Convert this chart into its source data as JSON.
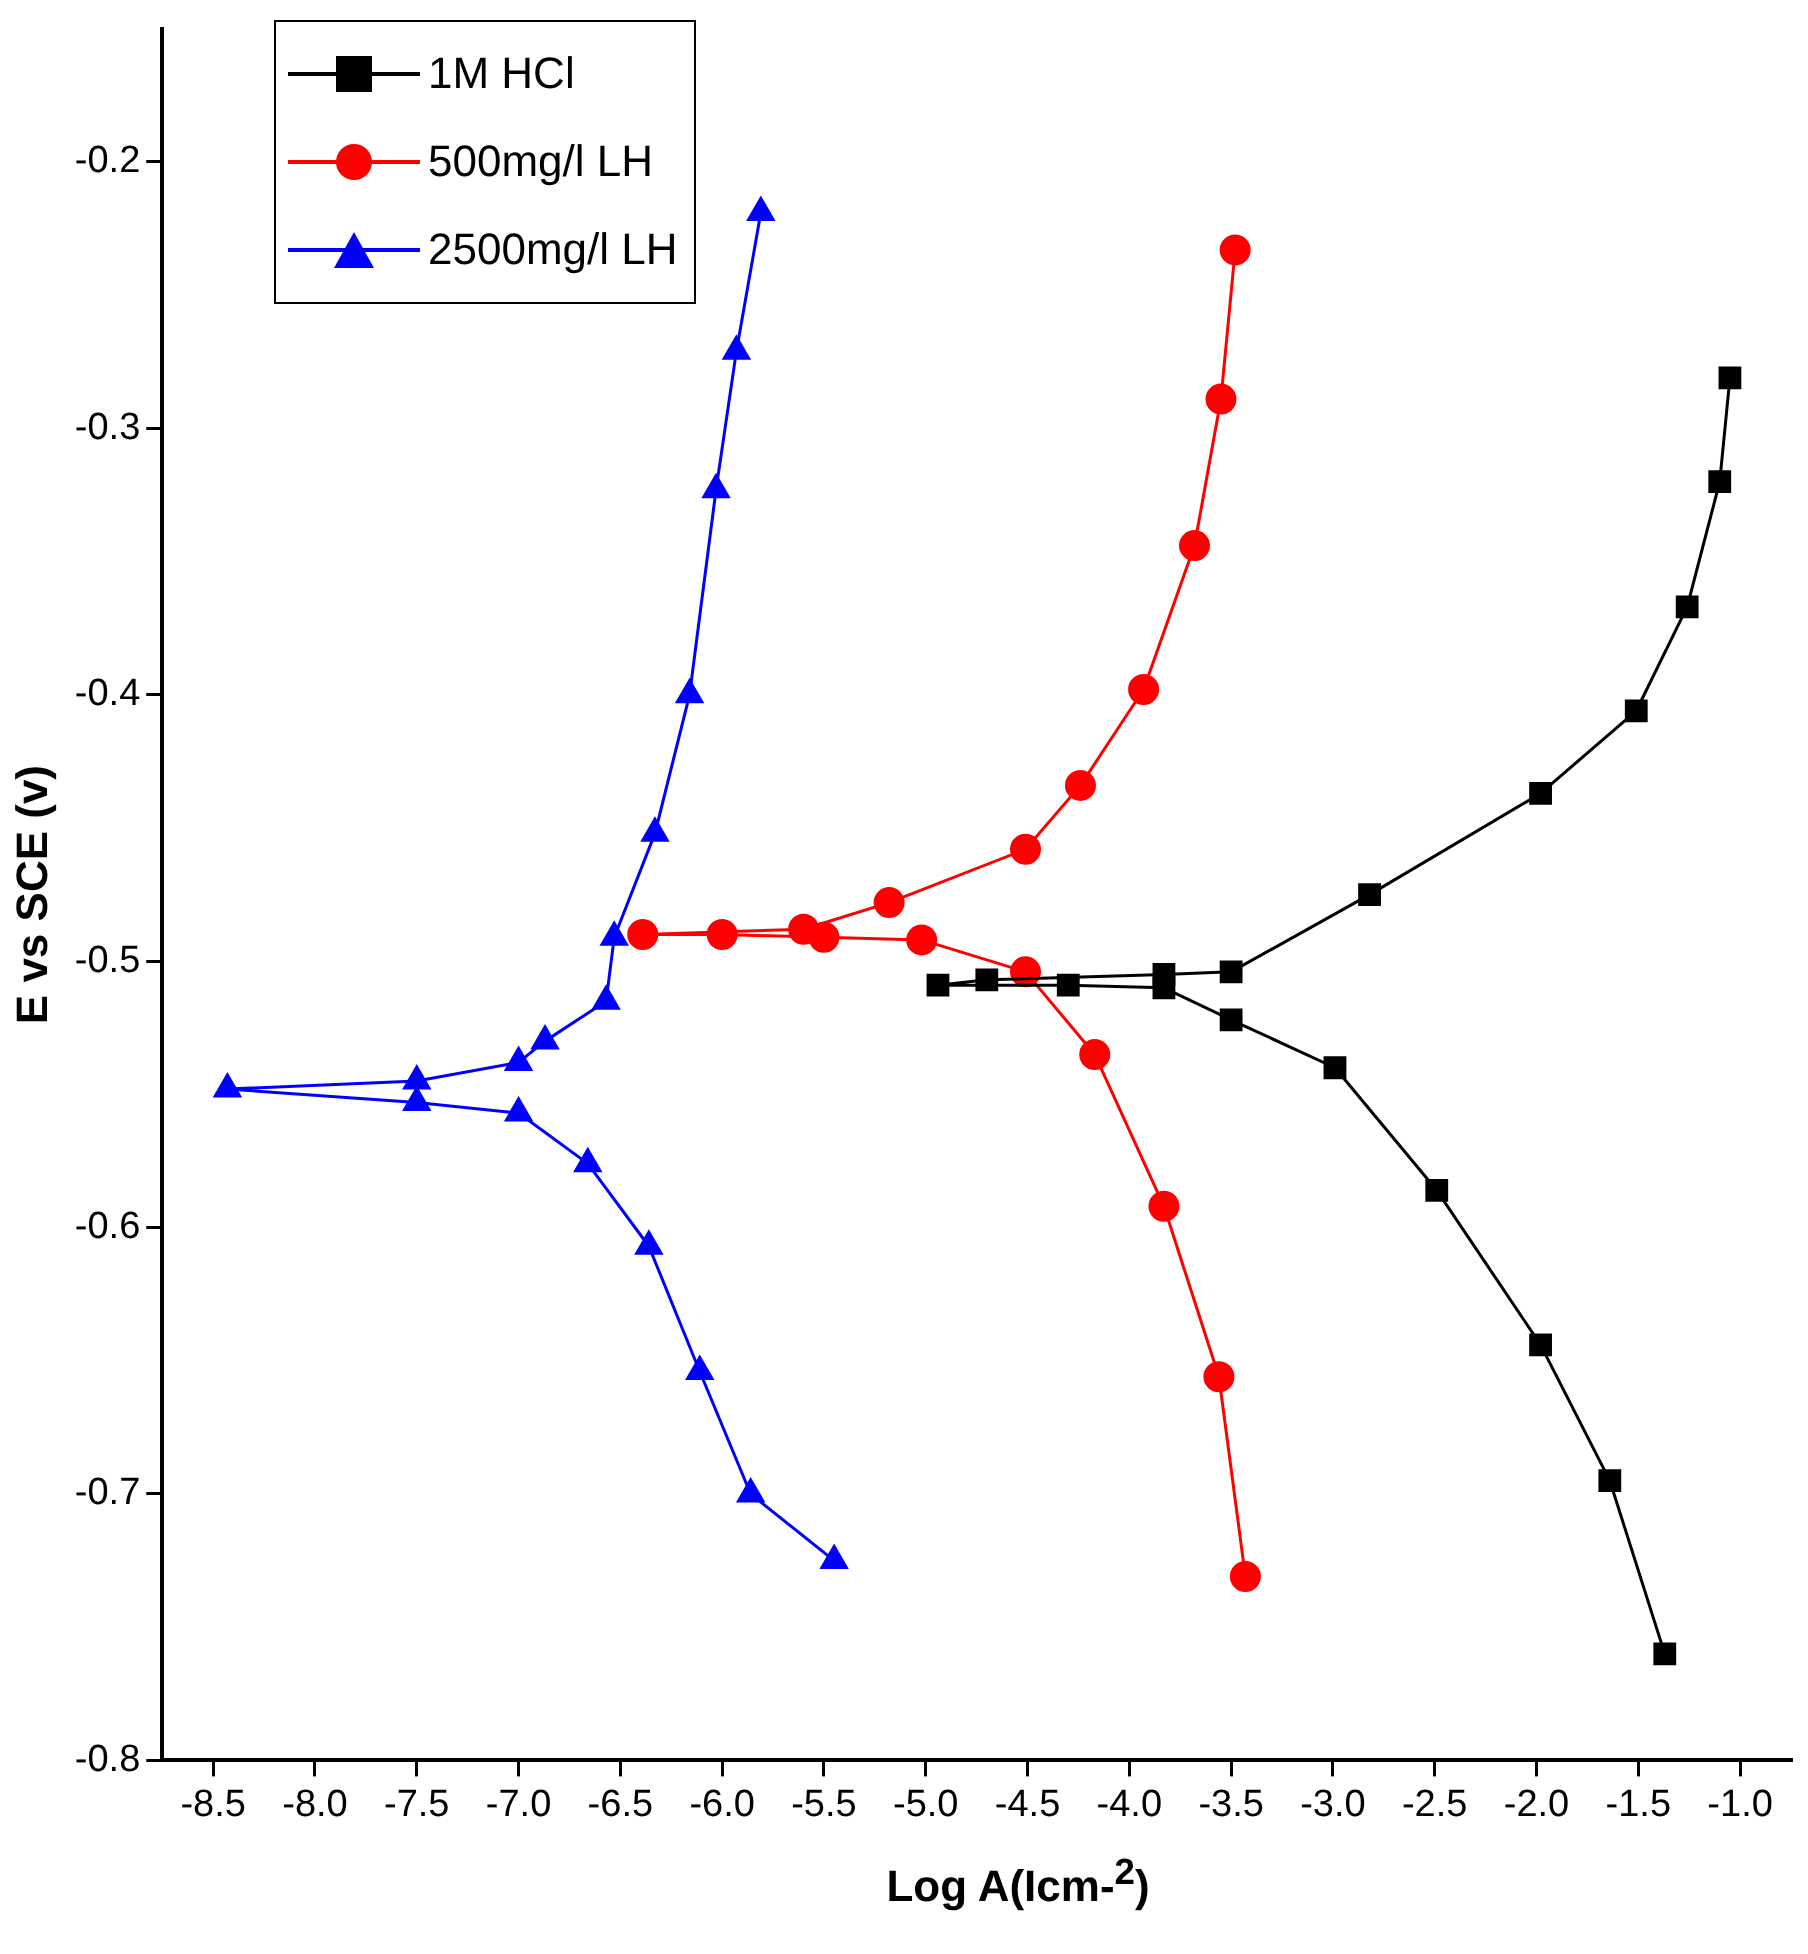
{
  "chart_data": {
    "type": "line",
    "xlabel": "Log A(Icm-$^{2}$)",
    "ylabel": "E vs SCE (v)",
    "xlim": [
      -8.75,
      -0.75
    ],
    "ylim": [
      -0.8,
      -0.15
    ],
    "xticks": [
      -8.5,
      {
        "value": -8,
        "label": "-8.0"
      },
      -7.5,
      {
        "value": -7,
        "label": "-7.0"
      },
      -6.5,
      {
        "value": -6,
        "label": "-6.0"
      },
      -5.5,
      {
        "value": -5,
        "label": "-5.0"
      },
      -4.5,
      {
        "value": -4,
        "label": "-4.0"
      },
      -3.5,
      {
        "value": -3,
        "label": "-3.0"
      },
      -2.5,
      {
        "value": -2,
        "label": "-2.0"
      },
      -1.5,
      {
        "value": -1,
        "label": "-1.0"
      }
    ],
    "yticks": [
      -0.8,
      -0.7,
      -0.6,
      -0.5,
      -0.4,
      -0.3,
      -0.2
    ],
    "grid": false,
    "legend": "top left",
    "line_style": "solid",
    "series": [
      {
        "name": "1M HCl",
        "color": "#000000",
        "marker": "square",
        "x": [
          -1.37,
          -1.64,
          -1.98,
          -2.49,
          -2.99,
          -3.5,
          -3.83,
          -4.3,
          -4.94,
          -4.7,
          -3.83,
          -3.5,
          -2.82,
          -1.98,
          -1.51,
          -1.26,
          -1.1,
          -1.05
        ],
        "values": [
          -0.76,
          -0.695,
          -0.644,
          -0.586,
          -0.54,
          -0.522,
          -0.51,
          -0.509,
          -0.509,
          -0.507,
          -0.505,
          -0.504,
          -0.475,
          -0.437,
          -0.406,
          -0.367,
          -0.32,
          -0.281
        ]
      },
      {
        "name": "500mg/l LH",
        "color": "#ff0000",
        "marker": "circle",
        "x": [
          -3.43,
          -3.56,
          -3.83,
          -4.17,
          -4.51,
          -5.02,
          -5.5,
          -6.0,
          -6.39,
          -5.6,
          -5.18,
          -4.51,
          -4.24,
          -3.93,
          -3.68,
          -3.55,
          -3.48
        ],
        "values": [
          -0.731,
          -0.656,
          -0.592,
          -0.535,
          -0.504,
          -0.492,
          -0.491,
          -0.49,
          -0.49,
          -0.488,
          -0.478,
          -0.458,
          -0.434,
          -0.398,
          -0.344,
          -0.289,
          -0.233
        ]
      },
      {
        "name": "2500mg/l LH",
        "color": "#0000ff",
        "marker": "triangle",
        "x": [
          -5.45,
          -5.86,
          -6.11,
          -6.36,
          -6.66,
          -7.0,
          -7.5,
          -8.43,
          -7.5,
          -7.0,
          -6.87,
          -6.57,
          -6.53,
          -6.33,
          -6.16,
          -6.03,
          -5.93,
          -5.81
        ],
        "values": [
          -0.725,
          -0.7,
          -0.654,
          -0.607,
          -0.576,
          -0.557,
          -0.553,
          -0.548,
          -0.545,
          -0.538,
          -0.53,
          -0.515,
          -0.491,
          -0.452,
          -0.4,
          -0.323,
          -0.271,
          -0.219
        ]
      }
    ]
  }
}
